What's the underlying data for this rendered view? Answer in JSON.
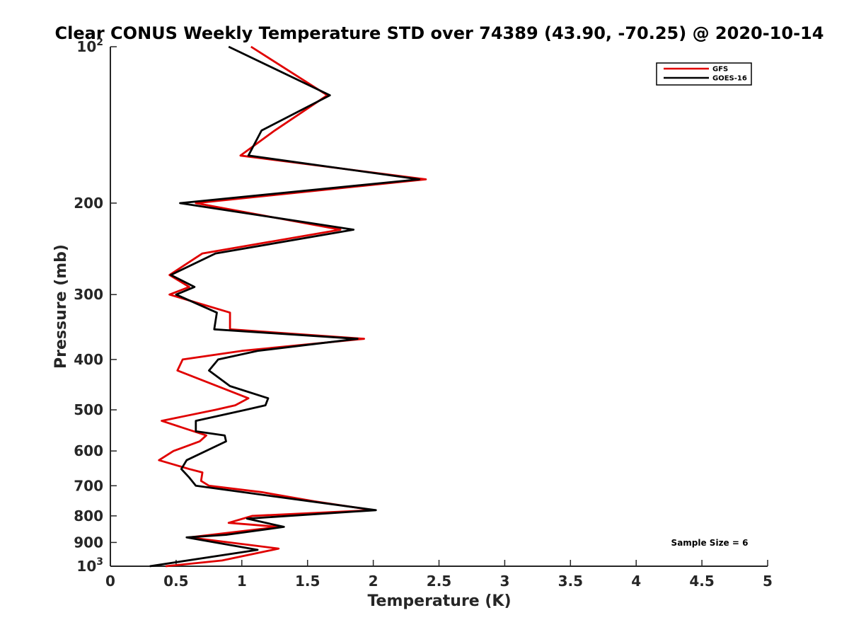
{
  "chart_data": {
    "type": "line",
    "title": "Clear CONUS Weekly Temperature STD over 74389 (43.90, -70.25) @ 2020-10-14",
    "xlabel": "Temperature (K)",
    "ylabel": "Pressure (mb)",
    "xlim": [
      0,
      5
    ],
    "ylim": [
      100,
      1000
    ],
    "yscale": "log",
    "yreverse": true,
    "grid": false,
    "legend_position": "top-right",
    "x_ticks": [
      {
        "value": 0,
        "label": "0"
      },
      {
        "value": 0.5,
        "label": "0.5"
      },
      {
        "value": 1,
        "label": "1"
      },
      {
        "value": 1.5,
        "label": "1.5"
      },
      {
        "value": 2,
        "label": "2"
      },
      {
        "value": 2.5,
        "label": "2.5"
      },
      {
        "value": 3,
        "label": "3"
      },
      {
        "value": 3.5,
        "label": "3.5"
      },
      {
        "value": 4,
        "label": "4"
      },
      {
        "value": 4.5,
        "label": "4.5"
      },
      {
        "value": 5,
        "label": "5"
      }
    ],
    "y_ticks": [
      {
        "value": 100,
        "label": "10",
        "sup": "2"
      },
      {
        "value": 200,
        "label": "200"
      },
      {
        "value": 300,
        "label": "300"
      },
      {
        "value": 400,
        "label": "400"
      },
      {
        "value": 500,
        "label": "500"
      },
      {
        "value": 600,
        "label": "600"
      },
      {
        "value": 700,
        "label": "700"
      },
      {
        "value": 800,
        "label": "800"
      },
      {
        "value": 900,
        "label": "900"
      },
      {
        "value": 1000,
        "label": "10",
        "sup": "3"
      }
    ],
    "series": [
      {
        "name": "GFS",
        "color": "#e00000",
        "points": [
          {
            "t": 1.07,
            "p": 100
          },
          {
            "t": 1.65,
            "p": 124
          },
          {
            "t": 1.25,
            "p": 145
          },
          {
            "t": 0.99,
            "p": 162
          },
          {
            "t": 2.4,
            "p": 180
          },
          {
            "t": 0.65,
            "p": 200
          },
          {
            "t": 1.75,
            "p": 225
          },
          {
            "t": 0.7,
            "p": 250
          },
          {
            "t": 0.45,
            "p": 275
          },
          {
            "t": 0.6,
            "p": 290
          },
          {
            "t": 0.45,
            "p": 300
          },
          {
            "t": 0.91,
            "p": 325
          },
          {
            "t": 0.91,
            "p": 350
          },
          {
            "t": 1.93,
            "p": 365
          },
          {
            "t": 1.0,
            "p": 385
          },
          {
            "t": 0.55,
            "p": 400
          },
          {
            "t": 0.51,
            "p": 420
          },
          {
            "t": 1.05,
            "p": 475
          },
          {
            "t": 0.95,
            "p": 490
          },
          {
            "t": 0.8,
            "p": 500
          },
          {
            "t": 0.39,
            "p": 525
          },
          {
            "t": 0.73,
            "p": 560
          },
          {
            "t": 0.68,
            "p": 575
          },
          {
            "t": 0.48,
            "p": 600
          },
          {
            "t": 0.37,
            "p": 625
          },
          {
            "t": 0.6,
            "p": 650
          },
          {
            "t": 0.7,
            "p": 660
          },
          {
            "t": 0.69,
            "p": 685
          },
          {
            "t": 0.75,
            "p": 700
          },
          {
            "t": 1.15,
            "p": 720
          },
          {
            "t": 1.55,
            "p": 750
          },
          {
            "t": 2.0,
            "p": 780
          },
          {
            "t": 1.08,
            "p": 800
          },
          {
            "t": 0.9,
            "p": 825
          },
          {
            "t": 1.28,
            "p": 840
          },
          {
            "t": 0.6,
            "p": 880
          },
          {
            "t": 1.28,
            "p": 925
          },
          {
            "t": 0.85,
            "p": 975
          },
          {
            "t": 0.42,
            "p": 1000
          }
        ]
      },
      {
        "name": "GOES-16",
        "color": "#000000",
        "points": [
          {
            "t": 0.9,
            "p": 100
          },
          {
            "t": 1.67,
            "p": 124
          },
          {
            "t": 1.15,
            "p": 145
          },
          {
            "t": 1.05,
            "p": 162
          },
          {
            "t": 2.35,
            "p": 180
          },
          {
            "t": 0.53,
            "p": 200
          },
          {
            "t": 1.85,
            "p": 225
          },
          {
            "t": 0.8,
            "p": 250
          },
          {
            "t": 0.46,
            "p": 275
          },
          {
            "t": 0.64,
            "p": 290
          },
          {
            "t": 0.5,
            "p": 300
          },
          {
            "t": 0.81,
            "p": 325
          },
          {
            "t": 0.79,
            "p": 350
          },
          {
            "t": 1.88,
            "p": 365
          },
          {
            "t": 1.12,
            "p": 385
          },
          {
            "t": 0.82,
            "p": 400
          },
          {
            "t": 0.75,
            "p": 420
          },
          {
            "t": 0.91,
            "p": 450
          },
          {
            "t": 1.2,
            "p": 475
          },
          {
            "t": 1.18,
            "p": 490
          },
          {
            "t": 1.03,
            "p": 500
          },
          {
            "t": 0.65,
            "p": 525
          },
          {
            "t": 0.65,
            "p": 550
          },
          {
            "t": 0.87,
            "p": 560
          },
          {
            "t": 0.88,
            "p": 575
          },
          {
            "t": 0.58,
            "p": 625
          },
          {
            "t": 0.54,
            "p": 650
          },
          {
            "t": 0.6,
            "p": 675
          },
          {
            "t": 0.65,
            "p": 700
          },
          {
            "t": 1.35,
            "p": 740
          },
          {
            "t": 2.02,
            "p": 780
          },
          {
            "t": 1.04,
            "p": 810
          },
          {
            "t": 1.32,
            "p": 840
          },
          {
            "t": 0.88,
            "p": 870
          },
          {
            "t": 0.58,
            "p": 880
          },
          {
            "t": 1.12,
            "p": 930
          },
          {
            "t": 0.3,
            "p": 1000
          }
        ]
      }
    ],
    "annotation": "Sample Size = 6"
  }
}
